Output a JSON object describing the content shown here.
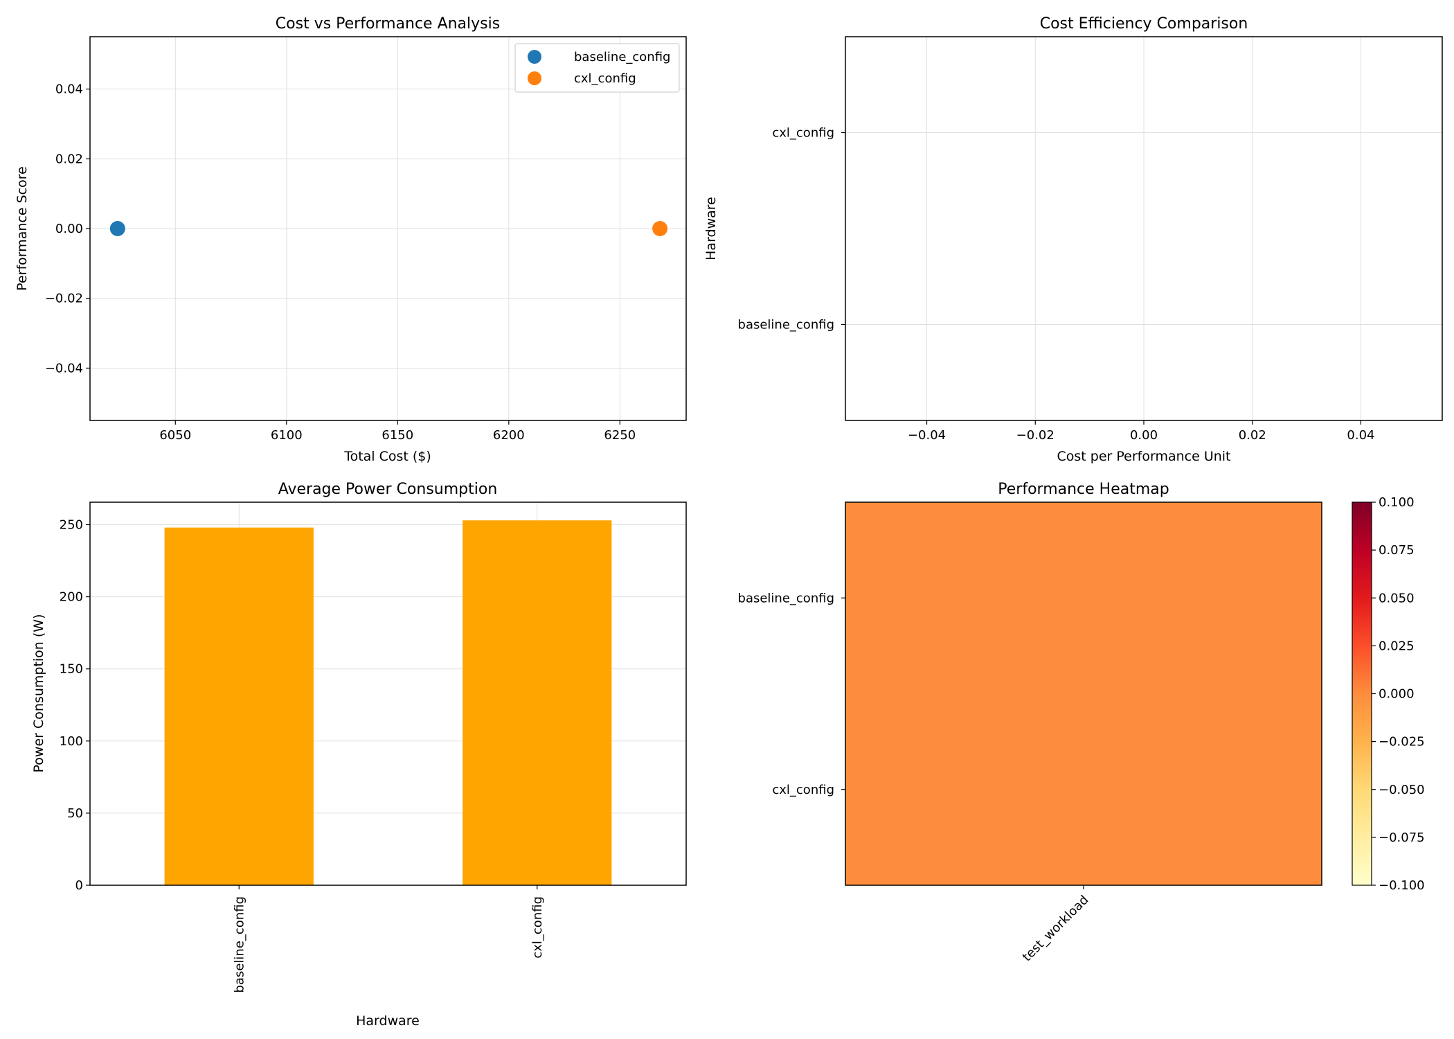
{
  "chart_data": [
    {
      "id": "scatter",
      "type": "scatter",
      "title": "Cost vs Performance Analysis",
      "xlabel": "Total Cost ($)",
      "ylabel": "Performance Score",
      "xlim": [
        6011.6,
        6279.8
      ],
      "ylim": [
        -0.055,
        0.055
      ],
      "xticks": [
        6050,
        6100,
        6150,
        6200,
        6250
      ],
      "xtick_labels": [
        "6050",
        "6100",
        "6150",
        "6200",
        "6250"
      ],
      "yticks": [
        -0.04,
        -0.02,
        0.0,
        0.02,
        0.04
      ],
      "ytick_labels": [
        "−0.04",
        "−0.02",
        "0.00",
        "0.02",
        "0.04"
      ],
      "grid": true,
      "legend_position": "upper right",
      "series": [
        {
          "name": "baseline_config",
          "color": "#1f77b4",
          "x": [
            6024
          ],
          "y": [
            0.0
          ]
        },
        {
          "name": "cxl_config",
          "color": "#ff7f0e",
          "x": [
            6268
          ],
          "y": [
            0.0
          ]
        }
      ]
    },
    {
      "id": "hbar",
      "type": "bar",
      "orientation": "horizontal",
      "title": "Cost Efficiency Comparison",
      "xlabel": "Cost per Performance Unit",
      "ylabel": "Hardware",
      "xlim": [
        -0.055,
        0.055
      ],
      "xticks": [
        -0.04,
        -0.02,
        0.0,
        0.02,
        0.04
      ],
      "xtick_labels": [
        "−0.04",
        "−0.02",
        "0.00",
        "0.02",
        "0.04"
      ],
      "categories": [
        "baseline_config",
        "cxl_config"
      ],
      "values": [
        null,
        null
      ],
      "grid": true
    },
    {
      "id": "bar",
      "type": "bar",
      "title": "Average Power Consumption",
      "xlabel": "Hardware",
      "ylabel": "Power Consumption (W)",
      "categories": [
        "baseline_config",
        "cxl_config"
      ],
      "values": [
        248,
        253
      ],
      "color": "#ffa500",
      "ylim": [
        0,
        265.6
      ],
      "yticks": [
        0,
        50,
        100,
        150,
        200,
        250
      ],
      "ytick_labels": [
        "0",
        "50",
        "100",
        "150",
        "200",
        "250"
      ],
      "grid": true
    },
    {
      "id": "heatmap",
      "type": "heatmap",
      "title": "Performance Heatmap",
      "rows": [
        "baseline_config",
        "cxl_config"
      ],
      "columns": [
        "test_workload"
      ],
      "values": [
        [
          0.0
        ],
        [
          0.0
        ]
      ],
      "colormap": "YlOrRd",
      "cell_color": "#fd8c3c",
      "colorbar_range": [
        -0.1,
        0.1
      ],
      "colorbar_ticks": [
        -0.1,
        -0.075,
        -0.05,
        -0.025,
        0.0,
        0.025,
        0.05,
        0.075,
        0.1
      ],
      "colorbar_tick_labels": [
        "−0.100",
        "−0.075",
        "−0.050",
        "−0.025",
        "0.000",
        "0.025",
        "0.050",
        "0.075",
        "0.100"
      ]
    }
  ]
}
